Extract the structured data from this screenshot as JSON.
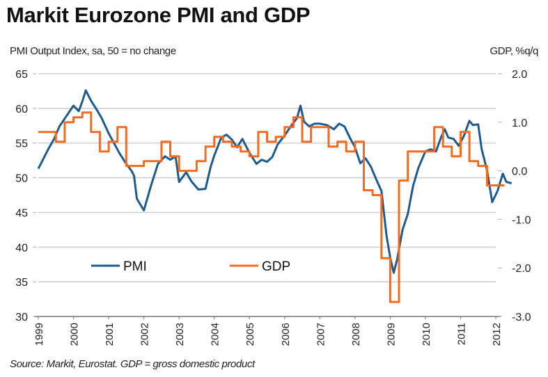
{
  "header": {
    "title": "Markit Eurozone PMI and GDP",
    "left_axis_caption": "PMI Output Index, sa, 50 = no change",
    "right_axis_caption": "GDP, %q/q"
  },
  "footer": {
    "source": "Source: Markit, Eurostat. GDP = gross domestic product"
  },
  "colors": {
    "pmi": "#1f5a8a",
    "gdp": "#f26b21",
    "grid": "#d0d0d0",
    "axis": "#555555"
  },
  "chart_data": {
    "type": "line",
    "title": "Markit Eurozone PMI and GDP",
    "xlabel": "",
    "ylabel": "PMI Output Index, sa, 50 = no change",
    "y2label": "GDP, %q/q",
    "xlim": [
      1999,
      2012.6
    ],
    "ylim": [
      30,
      65
    ],
    "y2lim": [
      -3.0,
      2.0
    ],
    "x_ticks": [
      "1999",
      "2000",
      "2001",
      "2002",
      "2003",
      "2004",
      "2005",
      "2006",
      "2007",
      "2008",
      "2009",
      "2010",
      "2011",
      "2012"
    ],
    "y_ticks": [
      "65",
      "60",
      "55",
      "50",
      "45",
      "40",
      "35",
      "30"
    ],
    "y2_ticks": [
      "2.0",
      "1.0",
      "0.0",
      "-1.0",
      "-2.0",
      "-3.0"
    ],
    "grid": true,
    "legend": {
      "placement": "bottom-left inside",
      "entries": [
        "PMI",
        "GDP"
      ]
    },
    "series": [
      {
        "name": "PMI",
        "axis": "left",
        "style": "line",
        "x": [
          1999.0,
          1999.15,
          1999.3,
          1999.45,
          1999.6,
          1999.8,
          2000.0,
          2000.15,
          2000.25,
          2000.35,
          2000.5,
          2000.65,
          2000.8,
          2001.0,
          2001.15,
          2001.3,
          2001.5,
          2001.65,
          2001.72,
          2001.8,
          2002.0,
          2002.2,
          2002.4,
          2002.6,
          2002.75,
          2002.9,
          2003.0,
          2003.2,
          2003.35,
          2003.55,
          2003.75,
          2003.9,
          2004.0,
          2004.2,
          2004.35,
          2004.5,
          2004.65,
          2004.8,
          2005.0,
          2005.2,
          2005.35,
          2005.5,
          2005.65,
          2005.8,
          2006.0,
          2006.2,
          2006.35,
          2006.45,
          2006.55,
          2006.7,
          2006.85,
          2007.0,
          2007.2,
          2007.4,
          2007.55,
          2007.7,
          2007.85,
          2008.0,
          2008.15,
          2008.3,
          2008.45,
          2008.6,
          2008.75,
          2008.9,
          2009.0,
          2009.1,
          2009.2,
          2009.35,
          2009.5,
          2009.65,
          2009.8,
          2010.0,
          2010.15,
          2010.3,
          2010.45,
          2010.55,
          2010.65,
          2010.8,
          2010.95,
          2011.1,
          2011.25,
          2011.35,
          2011.5,
          2011.6,
          2011.75,
          2011.9,
          2012.05,
          2012.2,
          2012.3,
          2012.45
        ],
        "values": [
          51.3,
          52.8,
          54.3,
          55.6,
          57.4,
          58.9,
          60.4,
          59.6,
          61.0,
          62.6,
          61.1,
          59.9,
          58.6,
          56.4,
          55.0,
          53.6,
          52.0,
          51.0,
          50.3,
          47.0,
          45.3,
          48.8,
          52.0,
          53.1,
          52.6,
          53.1,
          49.4,
          50.8,
          49.5,
          48.3,
          48.4,
          51.6,
          53.2,
          55.8,
          56.2,
          55.5,
          54.4,
          55.6,
          53.6,
          52.0,
          52.6,
          52.3,
          53.0,
          54.8,
          56.1,
          57.6,
          58.6,
          60.4,
          58.1,
          57.4,
          57.8,
          57.8,
          57.6,
          57.0,
          57.8,
          57.4,
          55.8,
          54.4,
          52.1,
          52.8,
          51.6,
          49.8,
          48.1,
          41.5,
          38.5,
          36.3,
          38.3,
          42.5,
          44.8,
          48.8,
          51.4,
          53.8,
          54.1,
          53.8,
          55.9,
          57.0,
          55.8,
          55.6,
          54.6,
          56.1,
          58.2,
          57.6,
          57.7,
          54.1,
          51.1,
          46.5,
          48.1,
          50.6,
          49.4,
          49.2
        ]
      },
      {
        "name": "GDP",
        "axis": "right",
        "style": "step",
        "x": [
          1999.0,
          1999.25,
          1999.5,
          1999.75,
          2000.0,
          2000.25,
          2000.5,
          2000.75,
          2001.0,
          2001.25,
          2001.5,
          2001.75,
          2002.0,
          2002.25,
          2002.5,
          2002.75,
          2003.0,
          2003.25,
          2003.5,
          2003.75,
          2004.0,
          2004.25,
          2004.5,
          2004.75,
          2005.0,
          2005.25,
          2005.5,
          2005.75,
          2006.0,
          2006.25,
          2006.5,
          2006.75,
          2007.0,
          2007.25,
          2007.5,
          2007.75,
          2008.0,
          2008.25,
          2008.5,
          2008.75,
          2009.0,
          2009.25,
          2009.5,
          2009.75,
          2010.0,
          2010.25,
          2010.5,
          2010.75,
          2011.0,
          2011.25,
          2011.5,
          2011.75,
          2012.0
        ],
        "values": [
          0.8,
          0.8,
          0.6,
          1.0,
          1.1,
          1.2,
          0.8,
          0.4,
          0.6,
          0.9,
          0.1,
          0.1,
          0.2,
          0.2,
          0.6,
          0.3,
          0.0,
          0.0,
          0.2,
          0.5,
          0.7,
          0.6,
          0.5,
          0.4,
          0.3,
          0.8,
          0.6,
          0.7,
          0.9,
          1.1,
          0.6,
          0.9,
          0.9,
          0.5,
          0.6,
          0.4,
          0.6,
          -0.4,
          -0.5,
          -1.8,
          -2.7,
          -0.2,
          0.4,
          0.4,
          0.4,
          0.9,
          0.5,
          0.3,
          0.8,
          0.2,
          0.1,
          -0.3,
          -0.3
        ]
      }
    ]
  }
}
